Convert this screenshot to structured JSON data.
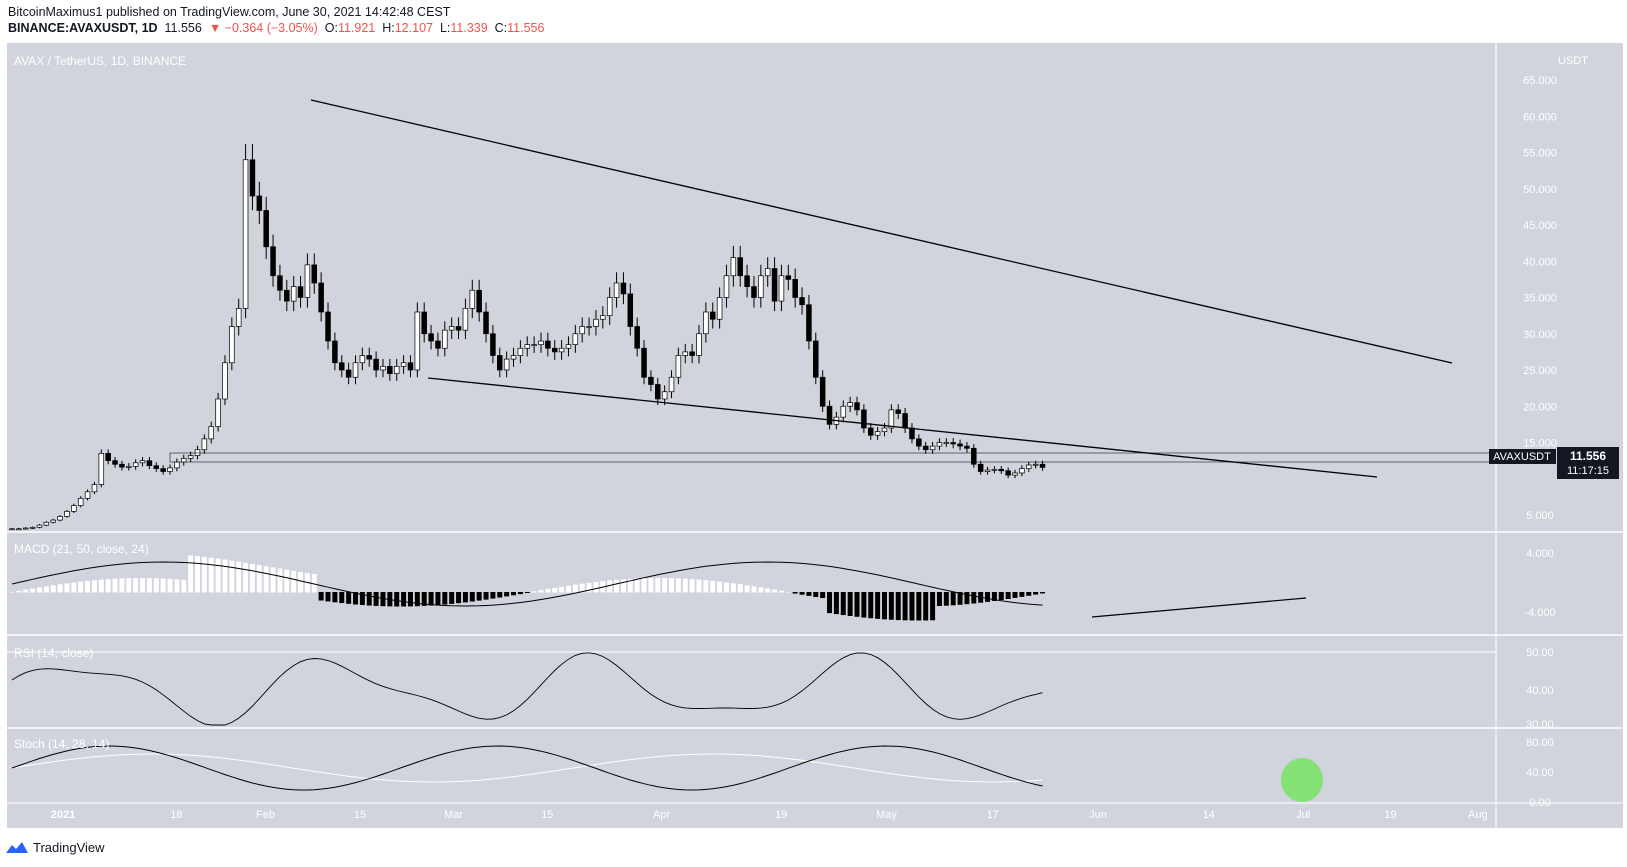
{
  "header": {
    "published": "BitcoinMaximus1 published on TradingView.com, June 30, 2021 14:42:48 CEST",
    "symbol": "BINANCE:AVAXUSDT, 1D",
    "last": "11.556",
    "change": "▼ −0.364 (−3.05%)",
    "o_label": "O:",
    "o_value": "11.921",
    "h_label": "H:",
    "h_value": "12.107",
    "l_label": "L:",
    "l_value": "11.339",
    "c_label": "C:",
    "c_value": "11.556"
  },
  "footer": {
    "brand": "TradingView"
  },
  "colors": {
    "pane_bg": "#d1d4dc",
    "candle_up": "#ffffff",
    "candle_down": "#000000",
    "line": "#000000",
    "price_tag_bg": "#131722",
    "highlight": "#7be36b",
    "down_text": "#ef5350"
  },
  "chart_data": {
    "type": "candlestick",
    "title": "AVAX / TetherUS, 1D, BINANCE",
    "currency": "USDT",
    "symbol_tag": "AVAXUSDT",
    "last_price": "11.556",
    "countdown": "11:17:15",
    "y_ticks": [
      "65.000",
      "60.000",
      "55.000",
      "50.000",
      "45.000",
      "40.000",
      "35.000",
      "30.000",
      "25.000",
      "20.000",
      "15.000",
      "5.000"
    ],
    "x_ticks": [
      "2021",
      "18",
      "Feb",
      "15",
      "Mar",
      "15",
      "Apr",
      "19",
      "May",
      "17",
      "Jun",
      "14",
      "Jul",
      "19",
      "Aug"
    ],
    "x_range": [
      "2020-12-23",
      "2021-08-03"
    ],
    "candles_close_approx": [
      3.1,
      3.1,
      3.2,
      3.3,
      3.6,
      4.0,
      4.3,
      4.8,
      5.5,
      6.3,
      7.3,
      8.2,
      9.2,
      13.5,
      12.5,
      12.0,
      11.6,
      11.7,
      12.2,
      12.5,
      11.8,
      11.4,
      11.0,
      11.5,
      12.3,
      12.8,
      13.2,
      14.0,
      15.5,
      17.2,
      21.0,
      26.0,
      31.0,
      33.5,
      54.0,
      49.0,
      47.0,
      42.0,
      38.0,
      36.0,
      34.5,
      36.5,
      35.0,
      39.5,
      37.0,
      33.0,
      29.0,
      26.0,
      25.0,
      24.0,
      26.0,
      27.0,
      26.5,
      25.0,
      25.5,
      24.5,
      25.5,
      26.0,
      25.0,
      33.0,
      30.0,
      29.0,
      28.0,
      30.5,
      31.0,
      30.5,
      33.5,
      36.0,
      33.0,
      30.0,
      27.0,
      25.0,
      26.5,
      27.0,
      28.0,
      28.5,
      28.5,
      29.0,
      28.0,
      27.5,
      28.0,
      28.5,
      30.0,
      31.0,
      31.0,
      32.0,
      32.5,
      35.0,
      37.0,
      35.5,
      31.0,
      28.0,
      24.0,
      23.0,
      21.0,
      22.0,
      24.0,
      27.0,
      27.5,
      27.0,
      30.0,
      33.0,
      32.0,
      35.0,
      38.0,
      40.5,
      38.0,
      36.5,
      35.0,
      38.0,
      39.0,
      34.5,
      38.0,
      37.5,
      35.0,
      34.0,
      29.0,
      24.0,
      20.0,
      17.5,
      18.5,
      20.0,
      20.5,
      19.5,
      17.0,
      16.0,
      16.5,
      17.0,
      19.5,
      19.0,
      17.0,
      15.5,
      14.5,
      14.0,
      14.5,
      15.0,
      15.0,
      14.8,
      14.5,
      14.2,
      12.0,
      11.0,
      11.2,
      11.3,
      11.1,
      10.5,
      10.8,
      11.4,
      11.9,
      12.0,
      11.56
    ],
    "series": [
      {
        "name": "MACD (21, 50, close, 24)",
        "ticks": [
          "4.000",
          "-4.000"
        ]
      },
      {
        "name": "RSI (14, close)",
        "ticks": [
          "50.00",
          "40.00",
          "30.00"
        ]
      },
      {
        "name": "Stoch (14, 28, 14)",
        "ticks": [
          "80.00",
          "40.00",
          "0.00"
        ]
      }
    ],
    "pattern": "descending wedge (trendlines)"
  }
}
